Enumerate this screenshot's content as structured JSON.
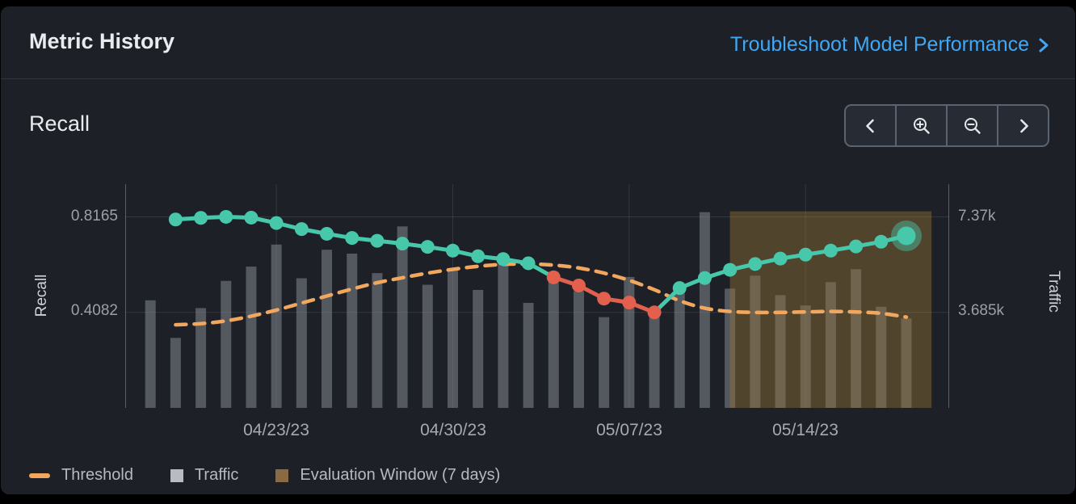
{
  "header": {
    "title": "Metric History",
    "link_label": "Troubleshoot Model Performance"
  },
  "section": {
    "title": "Recall"
  },
  "toolbar": {
    "buttons": [
      {
        "name": "pan-left",
        "icon": "chevron-left-icon"
      },
      {
        "name": "zoom-in",
        "icon": "zoom-in-icon"
      },
      {
        "name": "zoom-out",
        "icon": "zoom-out-icon"
      },
      {
        "name": "pan-right",
        "icon": "chevron-right-icon"
      }
    ]
  },
  "legend": {
    "items": [
      {
        "label": "Threshold",
        "swatch": "dash",
        "color": "#f2a75f"
      },
      {
        "label": "Traffic",
        "swatch": "square",
        "color": "#b7bcc2"
      },
      {
        "label": "Evaluation Window (7 days)",
        "swatch": "square",
        "color": "#8a6a42"
      }
    ]
  },
  "chart_data": {
    "type": "line",
    "title": "Recall",
    "x_axis": {
      "tick_labels": [
        "04/23/23",
        "04/30/23",
        "05/07/23",
        "05/14/23"
      ],
      "tick_days": [
        6,
        13,
        20,
        27
      ],
      "domain_days": [
        0,
        32.7
      ]
    },
    "y_axis_left": {
      "label": "Recall",
      "tick_labels": [
        "0.8165",
        "0.4082"
      ],
      "ticks": [
        0.8165,
        0.4082
      ],
      "range": [
        0,
        0.9561
      ]
    },
    "y_axis_right": {
      "label": "Traffic",
      "tick_labels": [
        "7.37k",
        "3.685k"
      ],
      "ticks": [
        7370,
        3685
      ],
      "range": [
        0,
        8630
      ]
    },
    "series": [
      {
        "name": "Recall",
        "type": "line",
        "color": "#47c8ab",
        "alert_color": "#e2604d",
        "days": [
          2,
          3,
          4,
          5,
          6,
          7,
          8,
          9,
          10,
          11,
          12,
          13,
          14,
          15,
          16,
          17,
          18,
          19,
          20,
          21,
          22,
          23,
          24,
          25,
          26,
          27,
          28,
          29,
          30,
          31
        ],
        "values": [
          0.805,
          0.812,
          0.8165,
          0.813,
          0.79,
          0.764,
          0.744,
          0.726,
          0.714,
          0.702,
          0.688,
          0.672,
          0.648,
          0.636,
          0.618,
          0.558,
          0.523,
          0.467,
          0.45,
          0.408,
          0.512,
          0.555,
          0.59,
          0.615,
          0.638,
          0.655,
          0.672,
          0.69,
          0.71,
          0.735
        ],
        "alert_days": [
          17,
          18,
          19,
          20,
          21
        ],
        "last_point_highlight": true
      },
      {
        "name": "Threshold",
        "type": "dashed-line",
        "color": "#f2a75f",
        "days": [
          2,
          3,
          4,
          5,
          6,
          7,
          8,
          9,
          10,
          11,
          12,
          13,
          14,
          15,
          16,
          17,
          18,
          19,
          20,
          21,
          22,
          23,
          24,
          25,
          26,
          27,
          28,
          29,
          30,
          31
        ],
        "values": [
          0.355,
          0.36,
          0.372,
          0.392,
          0.418,
          0.448,
          0.478,
          0.508,
          0.535,
          0.556,
          0.576,
          0.592,
          0.605,
          0.613,
          0.615,
          0.61,
          0.598,
          0.576,
          0.545,
          0.505,
          0.458,
          0.426,
          0.412,
          0.408,
          0.408,
          0.41,
          0.412,
          0.41,
          0.404,
          0.388
        ]
      },
      {
        "name": "Traffic",
        "type": "bar",
        "color": "#8b9097",
        "days": [
          1,
          2,
          3,
          4,
          5,
          6,
          7,
          8,
          9,
          10,
          11,
          12,
          13,
          14,
          15,
          16,
          17,
          18,
          19,
          20,
          21,
          22,
          23,
          24,
          25,
          26,
          27,
          28,
          29,
          30,
          31
        ],
        "values": [
          4150,
          2700,
          3850,
          4900,
          5450,
          6300,
          5000,
          6100,
          5950,
          5200,
          7000,
          4750,
          5300,
          4550,
          5600,
          4050,
          5250,
          4500,
          3500,
          5050,
          3750,
          4500,
          7550,
          4600,
          5100,
          4350,
          3950,
          4850,
          5350,
          3900,
          3450
        ]
      }
    ],
    "evaluation_window": {
      "label": "Evaluation Window (7 days)",
      "start_day": 24,
      "end_day": 32,
      "top_value": 0.84,
      "color": "#9a7438"
    }
  }
}
